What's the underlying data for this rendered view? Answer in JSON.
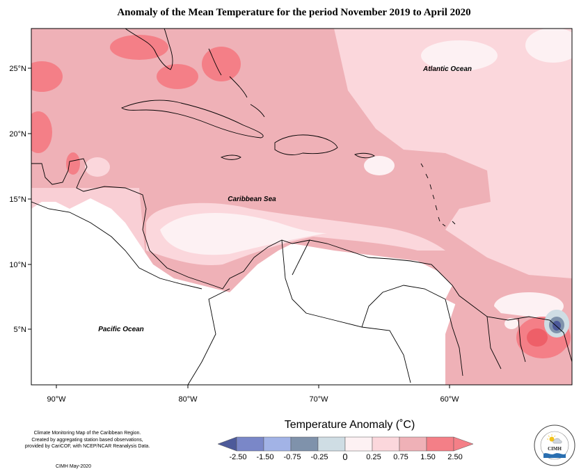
{
  "title": "Anomaly of the Mean Temperature for the period November 2019 to April 2020",
  "map": {
    "lon_ticks": [
      "90°W",
      "80°W",
      "70°W",
      "60°W"
    ],
    "lat_ticks": [
      "25°N",
      "20°N",
      "15°N",
      "10°N",
      "5°N"
    ],
    "region_labels": {
      "atlantic": "Atlantic Ocean",
      "caribbean": "Caribbean Sea",
      "pacific": "Pacific Ocean"
    }
  },
  "colorbar": {
    "title": "Temperature Anomaly (˚C)",
    "labels": [
      "-2.50",
      "-1.50",
      "-0.75",
      "-0.25",
      "0",
      "0.25",
      "0.75",
      "1.50",
      "2.50"
    ],
    "colors": [
      "#4d5a9a",
      "#7a87c8",
      "#a2b3e6",
      "#7f92ab",
      "#cfdde4",
      "#fdf1f3",
      "#fbd7dc",
      "#efb1b7",
      "#f47f87"
    ]
  },
  "credit": {
    "line1": "Climate Monitoring Map of the Caribbean Region.",
    "line2": "Created by aggregating station based observations,",
    "line3": "provided by CariCOF, with NCEP/NCAR Reanalysis Data.",
    "line4": "CIMH May-2020"
  },
  "logo": {
    "text": "CIMH"
  }
}
